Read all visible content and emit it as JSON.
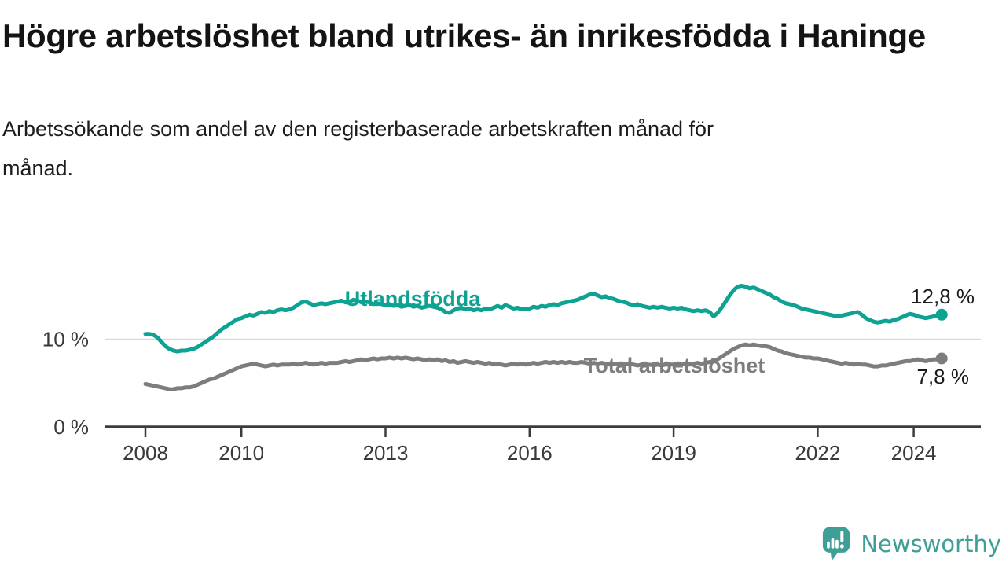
{
  "chart_data": {
    "type": "line",
    "title": "Högre arbetslöshet bland utrikes- än inrikesfödda i Haninge",
    "subtitle": "Arbetssökande som andel av den registerbaserade arbetskraften månad för månad.",
    "unit": "%",
    "x_base": 2008,
    "x_step": 0.0833333,
    "xlim": [
      2007.15,
      2025.4
    ],
    "ylim": [
      0,
      18
    ],
    "grid": "horizontal-10-only",
    "legend_position": "inline-labels",
    "x_ticks": [
      {
        "value": 2008,
        "label": "2008"
      },
      {
        "value": 2010,
        "label": "2010"
      },
      {
        "value": 2013,
        "label": "2013"
      },
      {
        "value": 2016,
        "label": "2016"
      },
      {
        "value": 2019,
        "label": "2019"
      },
      {
        "value": 2022,
        "label": "2022"
      },
      {
        "value": 2024,
        "label": "2024"
      }
    ],
    "y_ticks": [
      {
        "value": 0,
        "label": "0 %"
      },
      {
        "value": 10,
        "label": "10 %"
      }
    ],
    "series": [
      {
        "name": "Utlandsfödda",
        "color": "#0ea293",
        "end_label": "12,8 %",
        "end_value": 12.8,
        "values": [
          10.6,
          10.6,
          10.5,
          10.2,
          9.7,
          9.2,
          8.9,
          8.7,
          8.6,
          8.7,
          8.7,
          8.8,
          8.9,
          9.1,
          9.4,
          9.7,
          10.0,
          10.3,
          10.7,
          11.1,
          11.4,
          11.7,
          12.0,
          12.3,
          12.4,
          12.6,
          12.8,
          12.7,
          12.9,
          13.1,
          13.0,
          13.2,
          13.1,
          13.3,
          13.4,
          13.3,
          13.4,
          13.6,
          13.9,
          14.2,
          14.3,
          14.1,
          13.9,
          14.0,
          14.1,
          14.0,
          14.1,
          14.2,
          14.3,
          14.4,
          14.2,
          14.3,
          14.5,
          14.4,
          14.2,
          14.3,
          14.2,
          14.0,
          14.1,
          14.0,
          13.9,
          14.0,
          13.8,
          13.9,
          13.7,
          13.8,
          13.9,
          13.7,
          13.8,
          13.6,
          13.7,
          13.8,
          13.7,
          13.6,
          13.4,
          13.1,
          13.0,
          13.3,
          13.5,
          13.6,
          13.4,
          13.5,
          13.3,
          13.4,
          13.3,
          13.5,
          13.4,
          13.6,
          13.8,
          13.6,
          13.9,
          13.7,
          13.5,
          13.6,
          13.4,
          13.5,
          13.5,
          13.7,
          13.6,
          13.8,
          13.7,
          13.9,
          14.0,
          13.9,
          14.1,
          14.2,
          14.3,
          14.4,
          14.5,
          14.7,
          14.9,
          15.1,
          15.2,
          15.0,
          14.8,
          14.9,
          14.7,
          14.6,
          14.4,
          14.3,
          14.2,
          14.0,
          13.9,
          14.0,
          13.8,
          13.7,
          13.6,
          13.7,
          13.6,
          13.7,
          13.6,
          13.5,
          13.6,
          13.5,
          13.6,
          13.4,
          13.3,
          13.2,
          13.3,
          13.2,
          13.3,
          13.1,
          12.6,
          13.0,
          13.6,
          14.3,
          15.0,
          15.6,
          16.0,
          16.1,
          16.0,
          15.8,
          15.9,
          15.7,
          15.5,
          15.3,
          15.1,
          14.8,
          14.6,
          14.3,
          14.1,
          14.0,
          13.9,
          13.7,
          13.5,
          13.4,
          13.3,
          13.2,
          13.1,
          13.0,
          12.9,
          12.8,
          12.7,
          12.6,
          12.7,
          12.8,
          12.9,
          13.0,
          13.1,
          12.8,
          12.4,
          12.2,
          12.0,
          11.9,
          12.0,
          12.1,
          12.0,
          12.2,
          12.3,
          12.5,
          12.7,
          12.9,
          12.8,
          12.6,
          12.5,
          12.4,
          12.5,
          12.6,
          12.7,
          12.8
        ]
      },
      {
        "name": "Total arbetslöshet",
        "color": "#7d7d7d",
        "end_label": "7,8 %",
        "end_value": 7.8,
        "values": [
          4.9,
          4.8,
          4.7,
          4.6,
          4.5,
          4.4,
          4.3,
          4.3,
          4.4,
          4.4,
          4.5,
          4.5,
          4.6,
          4.8,
          5.0,
          5.2,
          5.4,
          5.5,
          5.7,
          5.9,
          6.1,
          6.3,
          6.5,
          6.7,
          6.9,
          7.0,
          7.1,
          7.2,
          7.1,
          7.0,
          6.9,
          7.0,
          7.1,
          7.0,
          7.1,
          7.1,
          7.1,
          7.2,
          7.1,
          7.2,
          7.3,
          7.2,
          7.1,
          7.2,
          7.3,
          7.2,
          7.3,
          7.3,
          7.3,
          7.4,
          7.5,
          7.4,
          7.5,
          7.6,
          7.7,
          7.6,
          7.7,
          7.8,
          7.7,
          7.8,
          7.8,
          7.9,
          7.8,
          7.9,
          7.8,
          7.9,
          7.8,
          7.7,
          7.8,
          7.7,
          7.6,
          7.7,
          7.6,
          7.7,
          7.5,
          7.6,
          7.4,
          7.5,
          7.3,
          7.4,
          7.5,
          7.4,
          7.3,
          7.4,
          7.3,
          7.2,
          7.3,
          7.1,
          7.2,
          7.1,
          7.0,
          7.1,
          7.2,
          7.1,
          7.2,
          7.1,
          7.2,
          7.3,
          7.2,
          7.3,
          7.4,
          7.3,
          7.4,
          7.3,
          7.4,
          7.3,
          7.4,
          7.3,
          7.3,
          7.4,
          7.3,
          7.2,
          7.3,
          7.2,
          7.3,
          7.2,
          7.1,
          7.2,
          7.1,
          7.2,
          7.1,
          7.2,
          7.1,
          7.0,
          7.1,
          7.0,
          7.1,
          7.0,
          7.1,
          7.0,
          7.1,
          7.1,
          7.1,
          7.2,
          7.1,
          7.2,
          7.1,
          7.2,
          7.3,
          7.2,
          7.3,
          7.4,
          7.5,
          7.7,
          8.0,
          8.3,
          8.6,
          8.9,
          9.1,
          9.3,
          9.4,
          9.3,
          9.4,
          9.3,
          9.2,
          9.2,
          9.1,
          8.9,
          8.7,
          8.6,
          8.4,
          8.3,
          8.2,
          8.1,
          8.0,
          7.9,
          7.9,
          7.8,
          7.8,
          7.7,
          7.6,
          7.5,
          7.4,
          7.3,
          7.2,
          7.3,
          7.2,
          7.1,
          7.2,
          7.1,
          7.1,
          7.0,
          6.9,
          6.9,
          7.0,
          7.0,
          7.1,
          7.2,
          7.3,
          7.4,
          7.5,
          7.5,
          7.6,
          7.7,
          7.6,
          7.5,
          7.6,
          7.7,
          7.7,
          7.8
        ]
      }
    ]
  },
  "footer": {
    "brand": "Newsworthy"
  },
  "colors": {
    "series_foreign": "#0ea293",
    "series_total": "#7d7d7d",
    "axis": "#3c3c3c",
    "grid": "#d9d9d9",
    "end_label_text": "#1a1a1a",
    "brand_teal": "#3f9e96"
  }
}
